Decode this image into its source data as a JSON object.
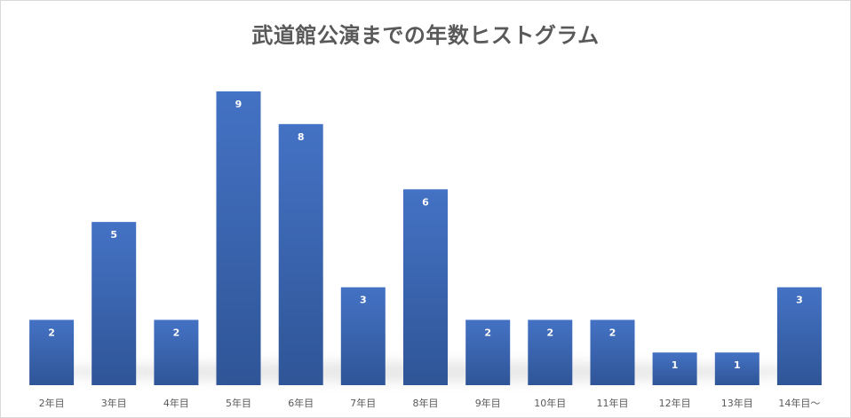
{
  "chart_data": {
    "type": "bar",
    "title": "武道館公演までの年数ヒストグラム",
    "xlabel": "",
    "ylabel": "",
    "categories": [
      "2年目",
      "3年目",
      "4年目",
      "5年目",
      "6年目",
      "7年目",
      "8年目",
      "9年目",
      "10年目",
      "11年目",
      "12年目",
      "13年目",
      "14年目〜"
    ],
    "values": [
      2,
      5,
      2,
      9,
      8,
      3,
      6,
      2,
      2,
      2,
      1,
      1,
      3
    ],
    "ylim": [
      0,
      9
    ],
    "grid": false,
    "legend": "none",
    "bar_color_top": "#4472c4",
    "bar_color_bottom": "#2f5597",
    "data_labels": "inside-end"
  }
}
